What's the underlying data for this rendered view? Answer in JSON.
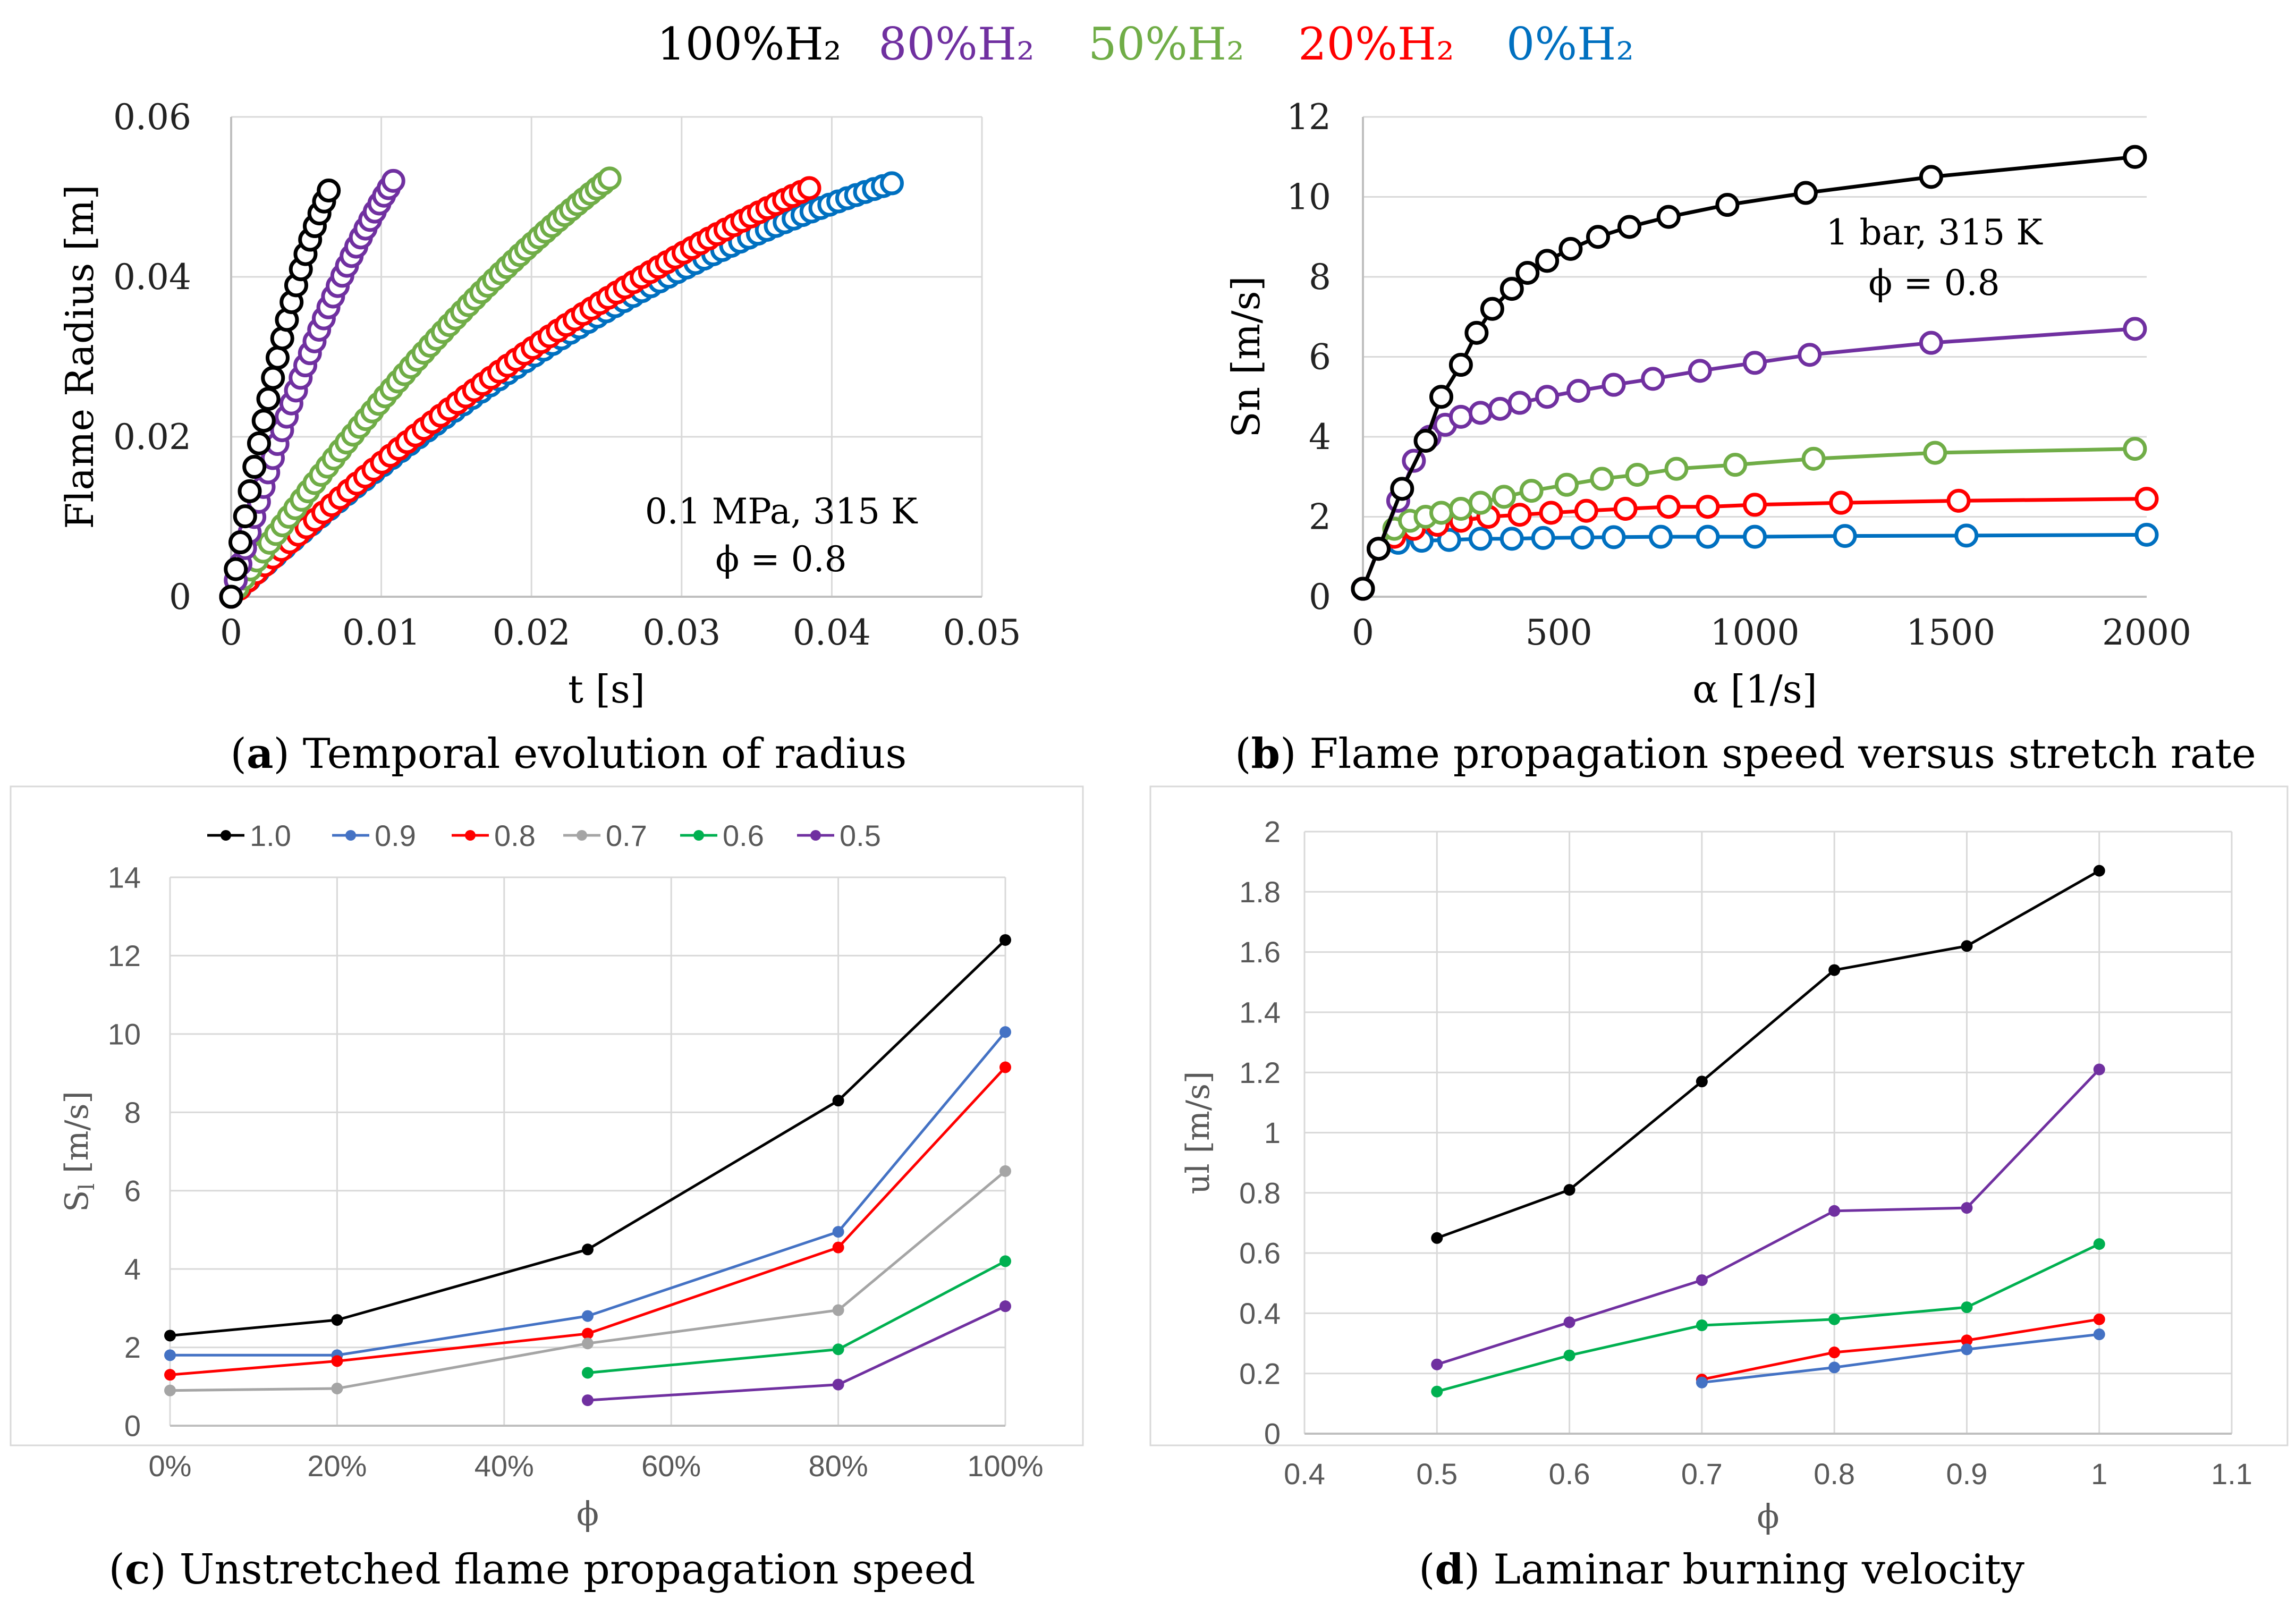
{
  "legend_top": [
    {
      "label": "100%H₂",
      "color": "#000000"
    },
    {
      "label": "80%H₂",
      "color": "#7030a0"
    },
    {
      "label": "50%H₂",
      "color": "#70ad47"
    },
    {
      "label": "20%H₂",
      "color": "#ff0000"
    },
    {
      "label": "0%H₂",
      "color": "#0070c0"
    }
  ],
  "chart_data": [
    {
      "id": "a",
      "type": "scatter",
      "caption_letter": "a",
      "caption_rest": ") Temporal evolution of radius",
      "xlabel": "t [s]",
      "ylabel": "Flame Radius [m]",
      "xlim": [
        0,
        0.05
      ],
      "ylim": [
        0,
        0.06
      ],
      "xticks": [
        0,
        0.01,
        0.02,
        0.03,
        0.04,
        0.05
      ],
      "xtick_labels": [
        "0",
        "0.01",
        "0.02",
        "0.03",
        "0.04",
        "0.05"
      ],
      "yticks": [
        0,
        0.02,
        0.04,
        0.06
      ],
      "ytick_labels": [
        "0",
        "0.02",
        "0.04",
        "0.06"
      ],
      "annotation": [
        "0.1 MPa, 315 K",
        "ϕ = 0.8"
      ],
      "series": [
        {
          "name": "100%H₂",
          "color": "#000000",
          "t_end": 0.0065,
          "r_end": 0.0508,
          "shape": 0.45,
          "n": 22
        },
        {
          "name": "80%H₂",
          "color": "#7030a0",
          "t_end": 0.0108,
          "r_end": 0.052,
          "shape": 0.4,
          "n": 36
        },
        {
          "name": "50%H₂",
          "color": "#70ad47",
          "t_end": 0.0252,
          "r_end": 0.0523,
          "shape": 0.3,
          "n": 60
        },
        {
          "name": "20%H₂",
          "color": "#ff0000",
          "t_end": 0.0385,
          "r_end": 0.0511,
          "shape": 0.35,
          "n": 70
        },
        {
          "name": "0%H₂",
          "color": "#0070c0",
          "t_end": 0.044,
          "r_end": 0.0517,
          "shape": 0.5,
          "n": 75
        }
      ]
    },
    {
      "id": "b",
      "type": "line",
      "caption_letter": "b",
      "caption_rest": ") Flame propagation speed versus stretch rate",
      "xlabel": "α [1/s]",
      "ylabel": "Sn [m/s]",
      "xlim": [
        0,
        2000
      ],
      "ylim": [
        0,
        12
      ],
      "xticks": [
        0,
        500,
        1000,
        1500,
        2000
      ],
      "xtick_labels": [
        "0",
        "500",
        "1000",
        "1500",
        "2000"
      ],
      "yticks": [
        0,
        2,
        4,
        6,
        8,
        10,
        12
      ],
      "ytick_labels": [
        "0",
        "2",
        "4",
        "6",
        "8",
        "10",
        "12"
      ],
      "annotation": [
        "1 bar, 315 K",
        "ϕ = 0.8"
      ],
      "series": [
        {
          "name": "100%H₂",
          "color": "#000000",
          "points": [
            [
              0,
              0.2
            ],
            [
              40,
              1.2
            ],
            [
              100,
              2.7
            ],
            [
              160,
              3.9
            ],
            [
              200,
              5.0
            ],
            [
              250,
              5.8
            ],
            [
              290,
              6.6
            ],
            [
              330,
              7.2
            ],
            [
              380,
              7.7
            ],
            [
              420,
              8.1
            ],
            [
              470,
              8.4
            ],
            [
              530,
              8.7
            ],
            [
              600,
              9.0
            ],
            [
              680,
              9.25
            ],
            [
              780,
              9.5
            ],
            [
              930,
              9.8
            ],
            [
              1130,
              10.1
            ],
            [
              1450,
              10.5
            ],
            [
              1970,
              11.0
            ]
          ]
        },
        {
          "name": "80%H₂",
          "color": "#7030a0",
          "points": [
            [
              0,
              0.2
            ],
            [
              40,
              1.2
            ],
            [
              90,
              2.4
            ],
            [
              130,
              3.4
            ],
            [
              170,
              4.0
            ],
            [
              210,
              4.3
            ],
            [
              250,
              4.5
            ],
            [
              300,
              4.6
            ],
            [
              350,
              4.7
            ],
            [
              400,
              4.85
            ],
            [
              470,
              5.0
            ],
            [
              550,
              5.15
            ],
            [
              640,
              5.3
            ],
            [
              740,
              5.45
            ],
            [
              860,
              5.65
            ],
            [
              1000,
              5.85
            ],
            [
              1140,
              6.05
            ],
            [
              1450,
              6.35
            ],
            [
              1970,
              6.7
            ]
          ]
        },
        {
          "name": "50%H₂",
          "color": "#70ad47",
          "points": [
            [
              0,
              0.2
            ],
            [
              40,
              1.2
            ],
            [
              80,
              1.7
            ],
            [
              120,
              1.9
            ],
            [
              160,
              2.0
            ],
            [
              200,
              2.1
            ],
            [
              250,
              2.2
            ],
            [
              300,
              2.35
            ],
            [
              360,
              2.5
            ],
            [
              430,
              2.65
            ],
            [
              520,
              2.8
            ],
            [
              610,
              2.95
            ],
            [
              700,
              3.05
            ],
            [
              800,
              3.2
            ],
            [
              950,
              3.3
            ],
            [
              1150,
              3.45
            ],
            [
              1460,
              3.6
            ],
            [
              1970,
              3.7
            ]
          ]
        },
        {
          "name": "20%H₂",
          "color": "#ff0000",
          "points": [
            [
              0,
              0.2
            ],
            [
              40,
              1.2
            ],
            [
              80,
              1.5
            ],
            [
              130,
              1.7
            ],
            [
              190,
              1.8
            ],
            [
              250,
              1.9
            ],
            [
              320,
              2.0
            ],
            [
              400,
              2.05
            ],
            [
              480,
              2.1
            ],
            [
              570,
              2.15
            ],
            [
              670,
              2.2
            ],
            [
              780,
              2.25
            ],
            [
              880,
              2.25
            ],
            [
              1000,
              2.3
            ],
            [
              1220,
              2.35
            ],
            [
              1520,
              2.4
            ],
            [
              2000,
              2.45
            ]
          ]
        },
        {
          "name": "0%H₂",
          "color": "#0070c0",
          "points": [
            [
              0,
              0.2
            ],
            [
              40,
              1.2
            ],
            [
              90,
              1.35
            ],
            [
              150,
              1.4
            ],
            [
              220,
              1.42
            ],
            [
              300,
              1.45
            ],
            [
              380,
              1.45
            ],
            [
              460,
              1.47
            ],
            [
              560,
              1.48
            ],
            [
              640,
              1.49
            ],
            [
              760,
              1.5
            ],
            [
              880,
              1.5
            ],
            [
              1000,
              1.5
            ],
            [
              1230,
              1.52
            ],
            [
              1540,
              1.53
            ],
            [
              2000,
              1.55
            ]
          ]
        }
      ]
    },
    {
      "id": "c",
      "type": "line",
      "caption_letter": "c",
      "caption_rest": ") Unstretched flame propagation speed",
      "xlabel": "ϕ",
      "ylabel": "Sl [m/s]",
      "ylabel_main": "S",
      "ylabel_sub": "l",
      "ylabel_tail": " [m/s]",
      "xlim": [
        0,
        1
      ],
      "ylim": [
        0,
        14
      ],
      "xticks": [
        0,
        0.2,
        0.4,
        0.6,
        0.8,
        1.0
      ],
      "xtick_labels": [
        "0%",
        "20%",
        "40%",
        "60%",
        "80%",
        "100%"
      ],
      "yticks": [
        0,
        2,
        4,
        6,
        8,
        10,
        12,
        14
      ],
      "ytick_labels": [
        "0",
        "2",
        "4",
        "6",
        "8",
        "10",
        "12",
        "14"
      ],
      "legend": [
        "1.0",
        "0.9",
        "0.8",
        "0.7",
        "0.6",
        "0.5"
      ],
      "series": [
        {
          "name": "1.0",
          "color": "#000000",
          "x": [
            0,
            0.2,
            0.5,
            0.8,
            1.0
          ],
          "values": [
            2.3,
            2.7,
            4.5,
            8.3,
            12.4
          ]
        },
        {
          "name": "0.9",
          "color": "#4472c4",
          "x": [
            0,
            0.2,
            0.5,
            0.8,
            1.0
          ],
          "values": [
            1.8,
            1.8,
            2.8,
            4.95,
            10.05
          ]
        },
        {
          "name": "0.8",
          "color": "#ff0000",
          "x": [
            0,
            0.2,
            0.5,
            0.8,
            1.0
          ],
          "values": [
            1.3,
            1.65,
            2.35,
            4.55,
            9.15
          ]
        },
        {
          "name": "0.7",
          "color": "#a5a5a5",
          "x": [
            0,
            0.2,
            0.5,
            0.8,
            1.0
          ],
          "values": [
            0.9,
            0.95,
            2.1,
            2.95,
            6.5
          ]
        },
        {
          "name": "0.6",
          "color": "#00b050",
          "x": [
            0.5,
            0.8,
            1.0
          ],
          "values": [
            1.35,
            1.95,
            4.2
          ]
        },
        {
          "name": "0.5",
          "color": "#7030a0",
          "x": [
            0.5,
            0.8,
            1.0
          ],
          "values": [
            0.65,
            1.05,
            3.05
          ]
        }
      ]
    },
    {
      "id": "d",
      "type": "line",
      "caption_letter": "d",
      "caption_rest": ") Laminar burning velocity",
      "xlabel": "ϕ",
      "ylabel": "ul [m/s]",
      "xlim": [
        0.4,
        1.1
      ],
      "ylim": [
        0,
        2
      ],
      "xticks": [
        0.4,
        0.5,
        0.6,
        0.7,
        0.8,
        0.9,
        1.0,
        1.1
      ],
      "xtick_labels": [
        "0.4",
        "0.5",
        "0.6",
        "0.7",
        "0.8",
        "0.9",
        "1",
        "1.1"
      ],
      "yticks": [
        0,
        0.2,
        0.4,
        0.6,
        0.8,
        1.0,
        1.2,
        1.4,
        1.6,
        1.8,
        2.0
      ],
      "ytick_labels": [
        "0",
        "0.2",
        "0.4",
        "0.6",
        "0.8",
        "1",
        "1.2",
        "1.4",
        "1.6",
        "1.8",
        "2"
      ],
      "series": [
        {
          "name": "100%H₂",
          "color": "#000000",
          "x": [
            0.5,
            0.6,
            0.7,
            0.8,
            0.9,
            1.0
          ],
          "values": [
            0.65,
            0.81,
            1.17,
            1.54,
            1.62,
            1.87
          ]
        },
        {
          "name": "80%H₂",
          "color": "#7030a0",
          "x": [
            0.5,
            0.6,
            0.7,
            0.8,
            0.9,
            1.0
          ],
          "values": [
            0.23,
            0.37,
            0.51,
            0.74,
            0.75,
            1.21
          ]
        },
        {
          "name": "50%H₂",
          "color": "#00b050",
          "x": [
            0.5,
            0.6,
            0.7,
            0.8,
            0.9,
            1.0
          ],
          "values": [
            0.14,
            0.26,
            0.36,
            0.38,
            0.42,
            0.63
          ]
        },
        {
          "name": "20%H₂",
          "color": "#ff0000",
          "x": [
            0.7,
            0.8,
            0.9,
            1.0
          ],
          "values": [
            0.18,
            0.27,
            0.31,
            0.38
          ]
        },
        {
          "name": "0%H₂",
          "color": "#4472c4",
          "x": [
            0.7,
            0.8,
            0.9,
            1.0
          ],
          "values": [
            0.17,
            0.22,
            0.28,
            0.33
          ]
        }
      ]
    }
  ]
}
